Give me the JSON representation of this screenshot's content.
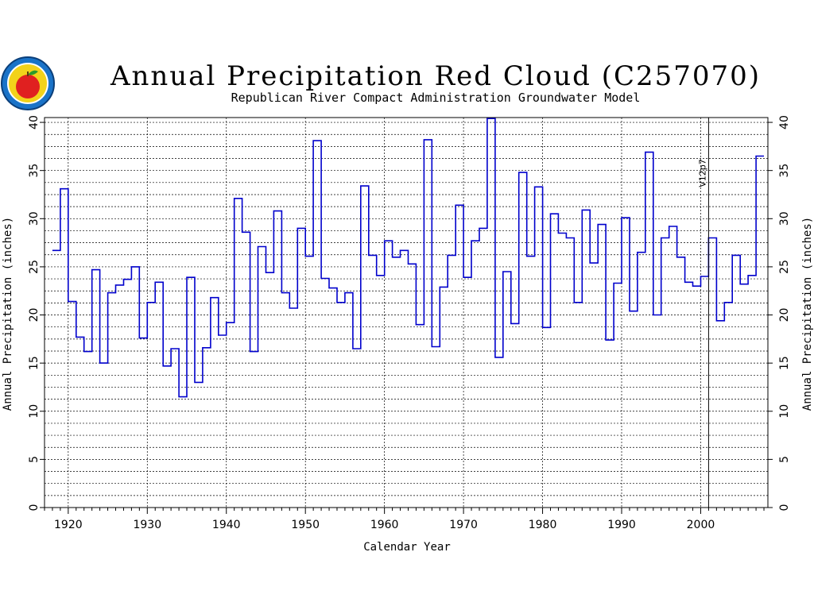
{
  "colors": {
    "series": "#0000cc",
    "axis": "#000000",
    "grid": "#000000",
    "logo_ring": "#1a73c8",
    "logo_apple": "#e02020",
    "logo_leaf": "#2a9a2a",
    "logo_fill": "#f2d21a"
  },
  "chart_data": {
    "type": "line",
    "title": "Annual Precipitation Red Cloud (C257070)",
    "subtitle": "Republican River Compact Administration Groundwater Model",
    "xlabel": "Calendar Year",
    "ylabel": "Annual Precipitation (inches)",
    "ylabel_right": "Annual Precipitation (inches)",
    "xlim": [
      1917,
      2008.5
    ],
    "ylim": [
      0,
      40.5
    ],
    "x_ticks": [
      "1920",
      "1930",
      "1940",
      "1950",
      "1960",
      "1970",
      "1980",
      "1990",
      "2000"
    ],
    "y_ticks": [
      "0",
      "5",
      "10",
      "15",
      "20",
      "25",
      "30",
      "35",
      "40"
    ],
    "grid": true,
    "step": "post",
    "annotation": {
      "x": 2001,
      "label": "V12p7"
    },
    "series": [
      {
        "x": [
          1918,
          1919,
          1920,
          1921,
          1922,
          1923,
          1924,
          1925,
          1926,
          1927,
          1928,
          1929,
          1930,
          1931,
          1932,
          1933,
          1934,
          1935,
          1936,
          1937,
          1938,
          1939,
          1940,
          1941,
          1942,
          1943,
          1944,
          1945,
          1946,
          1947,
          1948,
          1949,
          1950,
          1951,
          1952,
          1953,
          1954,
          1955,
          1956,
          1957,
          1958,
          1959,
          1960,
          1961,
          1962,
          1963,
          1964,
          1965,
          1966,
          1967,
          1968,
          1969,
          1970,
          1971,
          1972,
          1973,
          1974,
          1975,
          1976,
          1977,
          1978,
          1979,
          1980,
          1981,
          1982,
          1983,
          1984,
          1985,
          1986,
          1987,
          1988,
          1989,
          1990,
          1991,
          1992,
          1993,
          1994,
          1995,
          1996,
          1997,
          1998,
          1999,
          2000,
          2001,
          2002,
          2003,
          2004,
          2005,
          2006,
          2007
        ],
        "values": [
          26.7,
          33.1,
          21.4,
          17.7,
          16.2,
          24.7,
          15.0,
          22.3,
          23.1,
          23.7,
          25.0,
          17.6,
          21.3,
          23.4,
          14.7,
          16.5,
          11.5,
          23.9,
          13.0,
          16.6,
          21.8,
          17.9,
          19.2,
          32.1,
          28.6,
          16.2,
          27.1,
          24.4,
          30.8,
          22.3,
          20.7,
          29.0,
          26.1,
          38.1,
          23.8,
          22.8,
          21.3,
          22.3,
          16.5,
          33.4,
          26.2,
          24.1,
          27.7,
          26.0,
          26.7,
          25.3,
          19.0,
          38.2,
          16.7,
          22.9,
          26.2,
          31.4,
          23.9,
          27.7,
          29.0,
          40.4,
          15.6,
          24.5,
          19.1,
          34.8,
          26.1,
          33.3,
          18.7,
          30.5,
          28.5,
          28.0,
          21.3,
          30.9,
          25.4,
          29.4,
          17.4,
          23.3,
          30.1,
          20.4,
          26.5,
          36.9,
          20.0,
          28.0,
          29.2,
          26.0,
          23.4,
          23.0,
          24.0,
          28.0,
          19.4,
          21.3,
          26.2,
          23.2,
          24.1,
          36.5
        ]
      }
    ]
  }
}
